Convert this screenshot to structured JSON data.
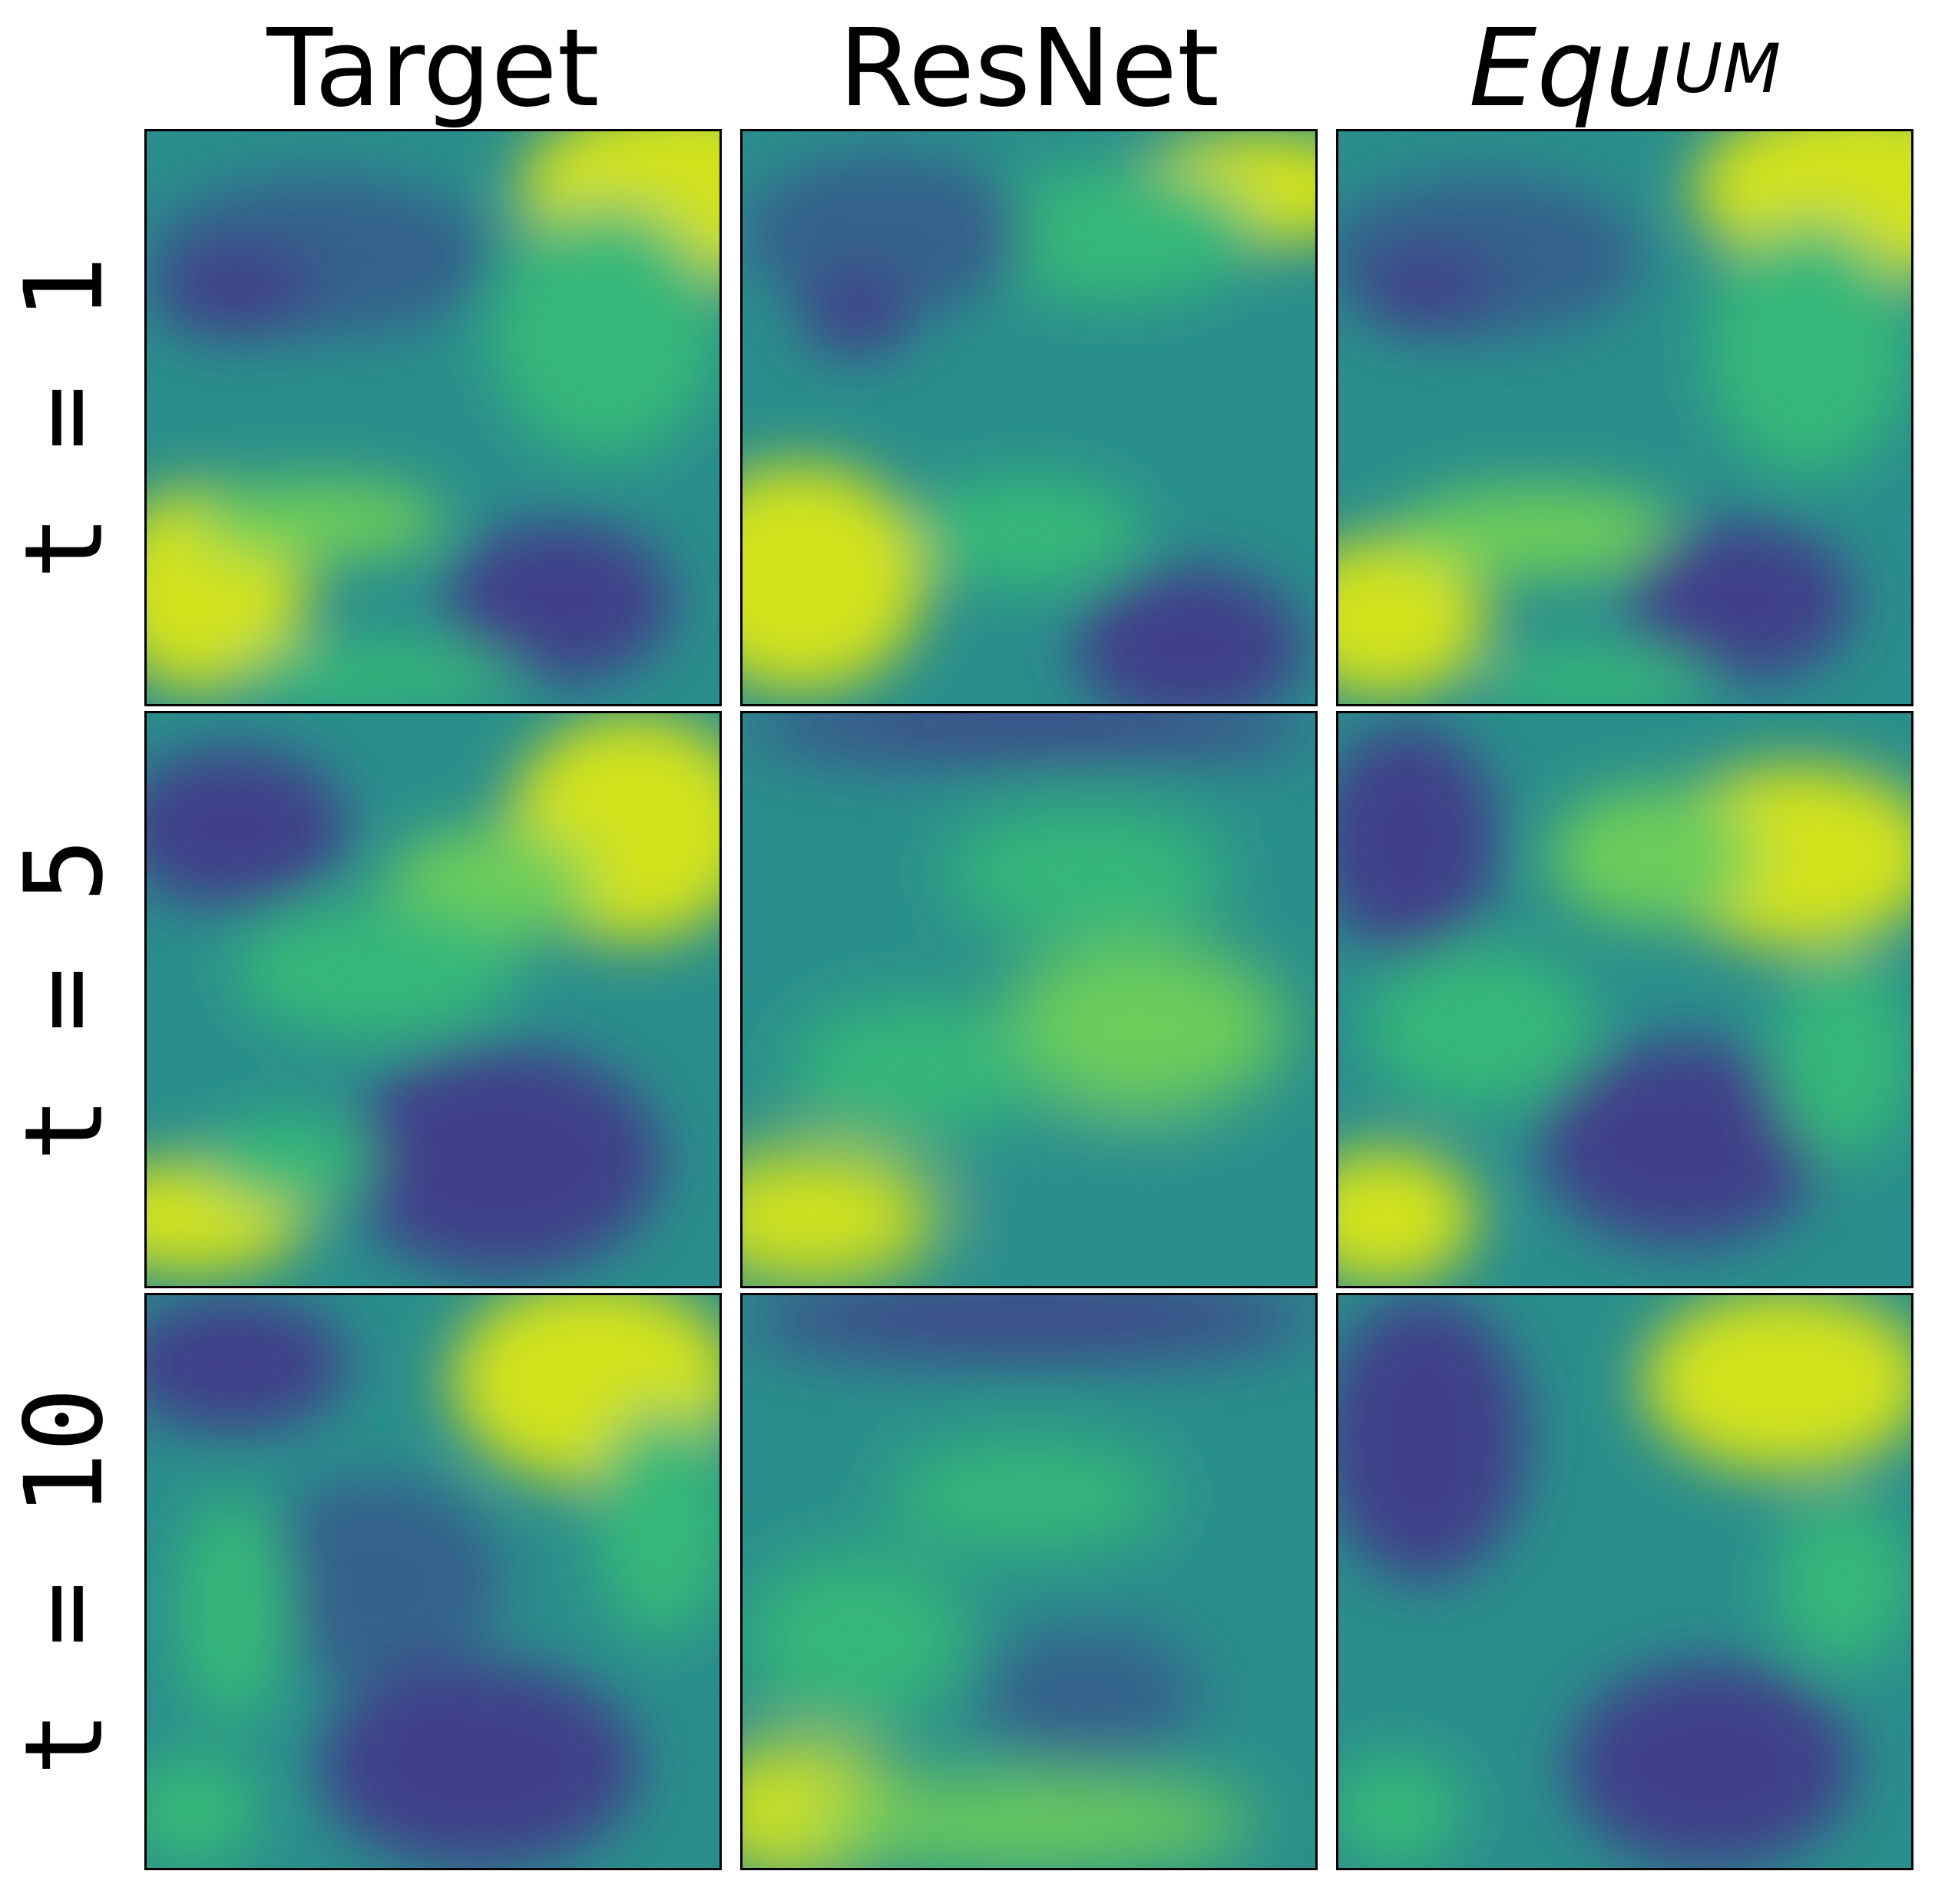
{
  "columns": [
    {
      "id": "target",
      "label": "Target"
    },
    {
      "id": "resnet",
      "label": "ResNet"
    },
    {
      "id": "equum",
      "label_main": "Equ",
      "label_sub": "UM"
    }
  ],
  "rows": [
    {
      "id": "t1",
      "label": "t = 1"
    },
    {
      "id": "t5",
      "label": "t = 5"
    },
    {
      "id": "t10",
      "label": "t = 10"
    }
  ],
  "colormap": {
    "name": "viridis",
    "dark": "#3f3f8a",
    "blue": "#34608c",
    "teal": "#2a8e8c",
    "green": "#35b779",
    "lightgreen": "#6ccd5a",
    "yellow": "#d2e21b"
  }
}
